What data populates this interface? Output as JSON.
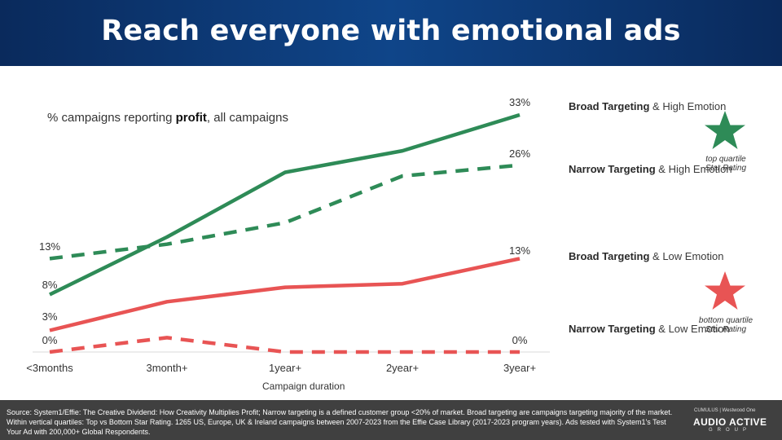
{
  "header": {
    "title": "Reach everyone with emotional ads"
  },
  "chart_data": {
    "type": "line",
    "subtitle_prefix": "% campaigns reporting ",
    "subtitle_bold": "profit",
    "subtitle_suffix": ", all campaigns",
    "xlabel": "Campaign duration",
    "categories": [
      "<3months",
      "3month+",
      "1year+",
      "2year+",
      "3year+"
    ],
    "ylim": [
      0,
      35
    ],
    "series": [
      {
        "name_bold": "Broad Targeting",
        "name_rest": " & High Emotion",
        "color": "#2e8b57",
        "dash": false,
        "values": [
          8,
          16,
          25,
          28,
          33
        ],
        "start_label": "8%",
        "end_label": "33%"
      },
      {
        "name_bold": "Narrow Targeting",
        "name_rest": " & High Emotion",
        "color": "#2e8b57",
        "dash": true,
        "values": [
          13,
          15,
          18,
          24.5,
          26
        ],
        "start_label": "13%",
        "end_label": "26%"
      },
      {
        "name_bold": "Broad Targeting",
        "name_rest": " & Low Emotion",
        "color": "#e85454",
        "dash": false,
        "values": [
          3,
          7,
          9,
          9.5,
          13
        ],
        "start_label": "3%",
        "end_label": "13%"
      },
      {
        "name_bold": "Narrow Targeting",
        "name_rest": " & Low Emotion",
        "color": "#e85454",
        "dash": true,
        "values": [
          0,
          2,
          0,
          0,
          0
        ],
        "start_label": "0%",
        "end_label": "0%"
      }
    ]
  },
  "legend": {
    "top_caption_line1": "top quartile",
    "top_caption_line2": "Star Rating",
    "bottom_caption_line1": "bottom quartile",
    "bottom_caption_line2": "Star Rating",
    "top_star_color": "#2e8b57",
    "bottom_star_color": "#e85454"
  },
  "footer": {
    "source": "Source: System1/Effie: The Creative Dividend: How Creativity Multiplies Profit; Narrow targeting is a defined customer group <20% of market. Broad targeting are campaigns targeting majority of the market. Within vertical quartiles: Top vs Bottom Star Rating. 1265 US, Europe, UK & Ireland campaigns between 2007-2023 from the Effie Case Library (2017-2023 program years). Ads tested with System1's Test Your Ad with 200,000+ Global Respondents.",
    "brand_top": "CUMULUS | Westwood One",
    "brand_main": "AUDIO ACTIVE",
    "brand_sub": "GROUP"
  }
}
